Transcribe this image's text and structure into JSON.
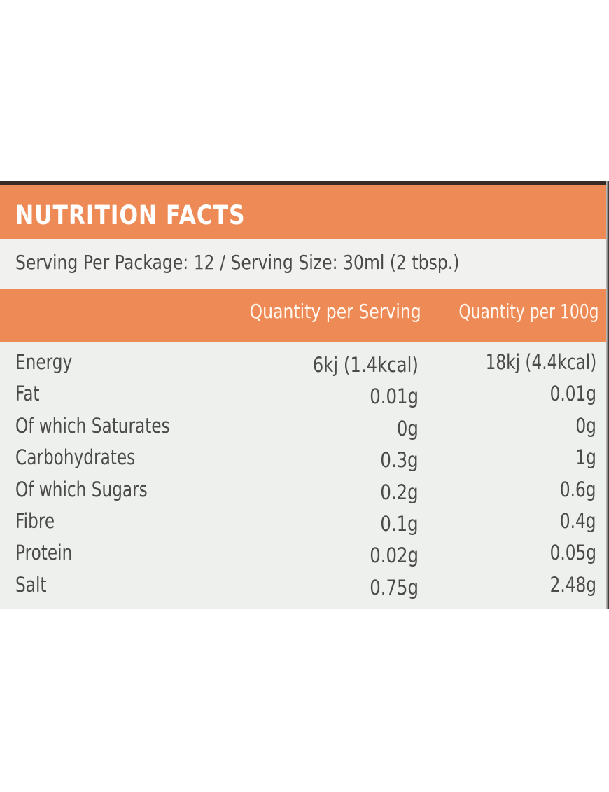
{
  "label": {
    "title": "NUTRITION FACTS",
    "serving_line": "Serving Per Package: 12 / Serving Size: 30ml (2 tbsp.)",
    "columns": [
      "Quantity per Serving",
      "Quantity per 100g"
    ],
    "rows": [
      {
        "name": "Energy",
        "per_serving": "6kj (1.4kcal)",
        "per_100g": "18kj (4.4kcal)"
      },
      {
        "name": "Fat",
        "per_serving": "0.01g",
        "per_100g": "0.01g"
      },
      {
        "name": "Of which Saturates",
        "per_serving": "0g",
        "per_100g": "0g"
      },
      {
        "name": "Carbohydrates",
        "per_serving": "0.3g",
        "per_100g": "1g"
      },
      {
        "name": "Of which Sugars",
        "per_serving": "0.2g",
        "per_100g": "0.6g"
      },
      {
        "name": "Fibre",
        "per_serving": "0.1g",
        "per_100g": "0.4g"
      },
      {
        "name": "Protein",
        "per_serving": "0.02g",
        "per_100g": "0.05g"
      },
      {
        "name": "Salt",
        "per_serving": "0.75g",
        "per_100g": "2.48g"
      }
    ]
  },
  "colors": {
    "band": "#ee8a55",
    "text": "#4a4a48",
    "background": "#eef0ee"
  }
}
